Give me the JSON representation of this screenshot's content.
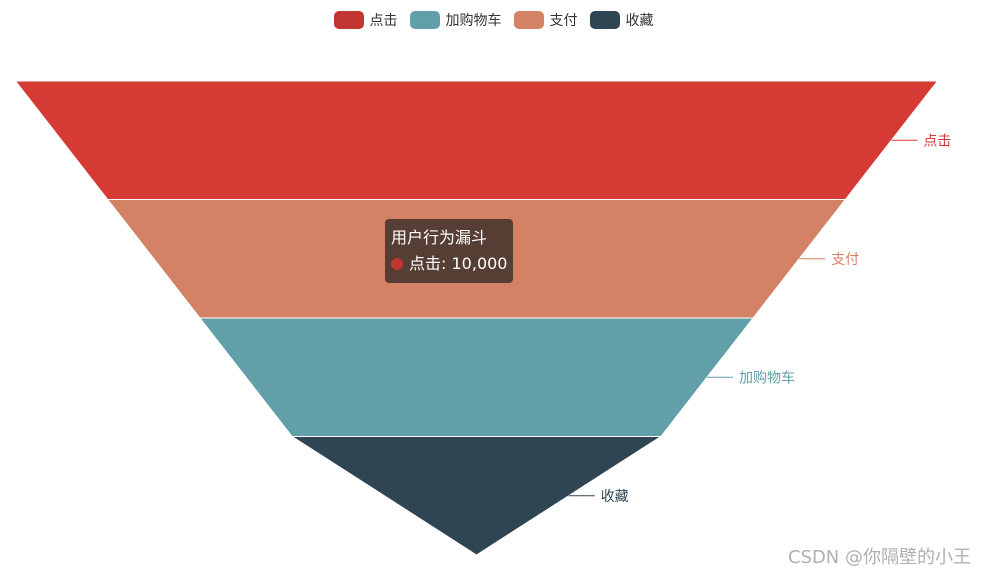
{
  "chart_data": {
    "type": "funnel",
    "title": "用户行为漏斗",
    "legend": {
      "placement": "top-center",
      "items": [
        {
          "name": "点击",
          "color": "#c23531"
        },
        {
          "name": "加购物车",
          "color": "#61a0a8"
        },
        {
          "name": "支付",
          "color": "#d48265"
        },
        {
          "name": "收藏",
          "color": "#2f4554"
        }
      ]
    },
    "stages": [
      {
        "name": "点击",
        "value": 10000,
        "color": "#d53a35"
      },
      {
        "name": "支付",
        "value": 8000,
        "color": "#d48265"
      },
      {
        "name": "加购物车",
        "value": 6000,
        "color": "#61a0a8"
      },
      {
        "name": "收藏",
        "value": 4000,
        "color": "#2f4554"
      }
    ],
    "tooltip": {
      "title": "用户行为漏斗",
      "series": "点击",
      "value": "10,000",
      "color": "#c23531"
    }
  },
  "watermark": "CSDN @你隔壁的小王"
}
